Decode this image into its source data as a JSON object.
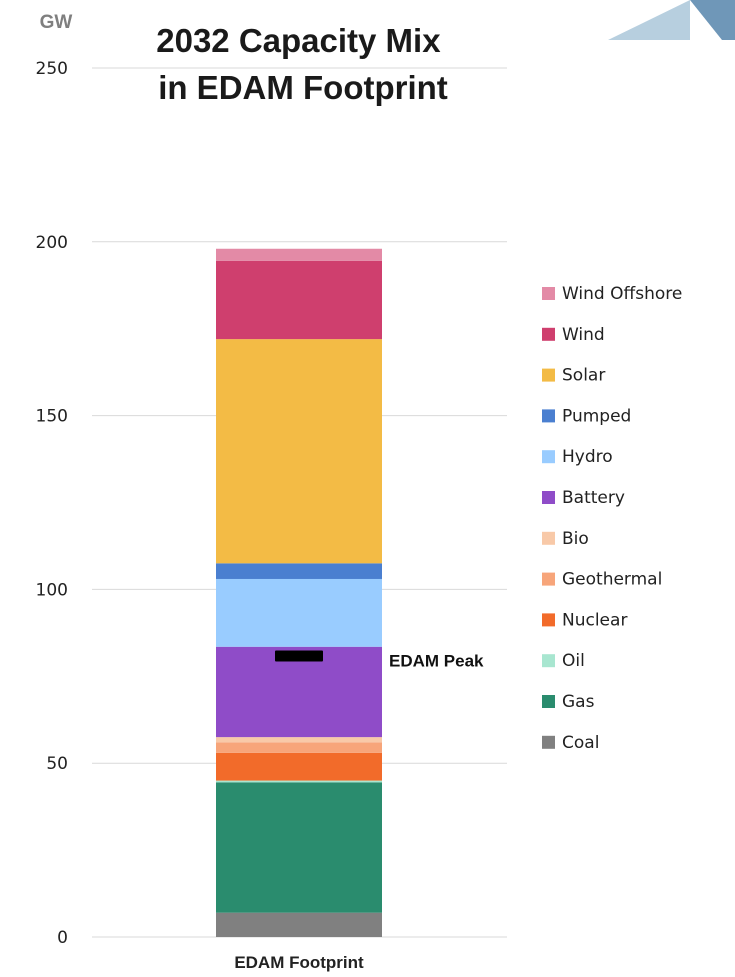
{
  "chart_data": {
    "type": "bar",
    "stacked": true,
    "title": "2032 Capacity Mix\nin EDAM Footprint",
    "ylabel": "GW",
    "ylim": [
      0,
      250
    ],
    "yticks": [
      0,
      50,
      100,
      150,
      200,
      250
    ],
    "categories": [
      "EDAM Footprint"
    ],
    "grid": true,
    "legend_position": "right",
    "series": [
      {
        "name": "Coal",
        "values": [
          7
        ],
        "color": "#808080"
      },
      {
        "name": "Gas",
        "values": [
          37.5
        ],
        "color": "#2a8c6e"
      },
      {
        "name": "Oil",
        "values": [
          0.5
        ],
        "color": "#a8e6d0"
      },
      {
        "name": "Nuclear",
        "values": [
          8
        ],
        "color": "#f26b2a"
      },
      {
        "name": "Geothermal",
        "values": [
          3
        ],
        "color": "#f7a57a"
      },
      {
        "name": "Bio",
        "values": [
          1.5
        ],
        "color": "#f8c9a8"
      },
      {
        "name": "Battery",
        "values": [
          26
        ],
        "color": "#8f4cc8"
      },
      {
        "name": "Hydro",
        "values": [
          19.5
        ],
        "color": "#99ccff"
      },
      {
        "name": "Pumped",
        "values": [
          4.5
        ],
        "color": "#4a7fd0"
      },
      {
        "name": "Solar",
        "values": [
          64.5
        ],
        "color": "#f3bb45"
      },
      {
        "name": "Wind",
        "values": [
          22.5
        ],
        "color": "#cf3f6e"
      },
      {
        "name": "Wind Offshore",
        "values": [
          3.5
        ],
        "color": "#e38aa6"
      }
    ],
    "annotations": [
      {
        "label": "EDAM Peak",
        "y": 81,
        "color": "#000000"
      }
    ]
  },
  "decoration": {
    "corner_logo_colors": [
      "#b7cfdf",
      "#6f97b8"
    ]
  }
}
